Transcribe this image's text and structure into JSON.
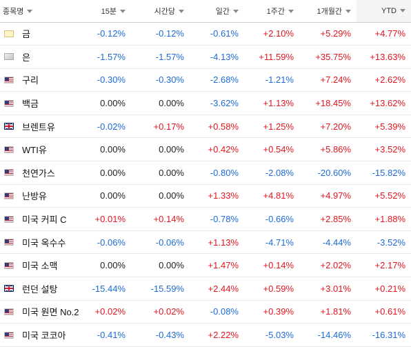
{
  "headers": [
    "종목명",
    "15분",
    "시간당",
    "일간",
    "1주간",
    "1개월간",
    "YTD"
  ],
  "rows": [
    {
      "name": "금",
      "flag": "gold-icon",
      "values": [
        "-0.12%",
        "-0.12%",
        "-0.61%",
        "+2.10%",
        "+5.29%",
        "+4.77%"
      ]
    },
    {
      "name": "은",
      "flag": "silver-icon",
      "values": [
        "-1.57%",
        "-1.57%",
        "-4.13%",
        "+11.59%",
        "+35.75%",
        "+13.63%"
      ]
    },
    {
      "name": "구리",
      "flag": "us-flag-icon",
      "values": [
        "-0.30%",
        "-0.30%",
        "-2.68%",
        "-1.21%",
        "+7.24%",
        "+2.62%"
      ]
    },
    {
      "name": "백금",
      "flag": "us-flag-icon",
      "values": [
        "0.00%",
        "0.00%",
        "-3.62%",
        "+1.13%",
        "+18.45%",
        "+13.62%"
      ]
    },
    {
      "name": "브렌트유",
      "flag": "uk-flag-icon",
      "values": [
        "-0.02%",
        "+0.17%",
        "+0.58%",
        "+1.25%",
        "+7.20%",
        "+5.39%"
      ]
    },
    {
      "name": "WTI유",
      "flag": "us-flag-icon",
      "values": [
        "0.00%",
        "0.00%",
        "+0.42%",
        "+0.54%",
        "+5.86%",
        "+3.52%"
      ]
    },
    {
      "name": "천연가스",
      "flag": "us-flag-icon",
      "values": [
        "0.00%",
        "0.00%",
        "-0.80%",
        "-2.08%",
        "-20.60%",
        "-15.82%"
      ]
    },
    {
      "name": "난방유",
      "flag": "us-flag-icon",
      "values": [
        "0.00%",
        "0.00%",
        "+1.33%",
        "+4.81%",
        "+4.97%",
        "+5.52%"
      ]
    },
    {
      "name": "미국 커피 C",
      "flag": "us-flag-icon",
      "values": [
        "+0.01%",
        "+0.14%",
        "-0.78%",
        "-0.66%",
        "+2.85%",
        "+1.88%"
      ]
    },
    {
      "name": "미국 옥수수",
      "flag": "us-flag-icon",
      "values": [
        "-0.06%",
        "-0.06%",
        "+1.13%",
        "-4.71%",
        "-4.44%",
        "-3.52%"
      ]
    },
    {
      "name": "미국 소맥",
      "flag": "us-flag-icon",
      "values": [
        "0.00%",
        "0.00%",
        "+1.47%",
        "+0.14%",
        "+2.02%",
        "+2.17%"
      ]
    },
    {
      "name": "런던 설탕",
      "flag": "uk-flag-icon",
      "values": [
        "-15.44%",
        "-15.59%",
        "+2.44%",
        "+0.59%",
        "+3.01%",
        "+0.21%"
      ]
    },
    {
      "name": "미국 원면 No.2",
      "flag": "us-flag-icon",
      "values": [
        "+0.02%",
        "+0.02%",
        "-0.08%",
        "+0.39%",
        "+1.81%",
        "+0.61%"
      ]
    },
    {
      "name": "미국 코코아",
      "flag": "us-flag-icon",
      "values": [
        "-0.41%",
        "-0.43%",
        "+2.22%",
        "-5.03%",
        "-14.46%",
        "-16.31%"
      ]
    }
  ],
  "colors": {
    "positive": "#e0161f",
    "negative": "#1d6bd6",
    "neutral": "#222222"
  }
}
